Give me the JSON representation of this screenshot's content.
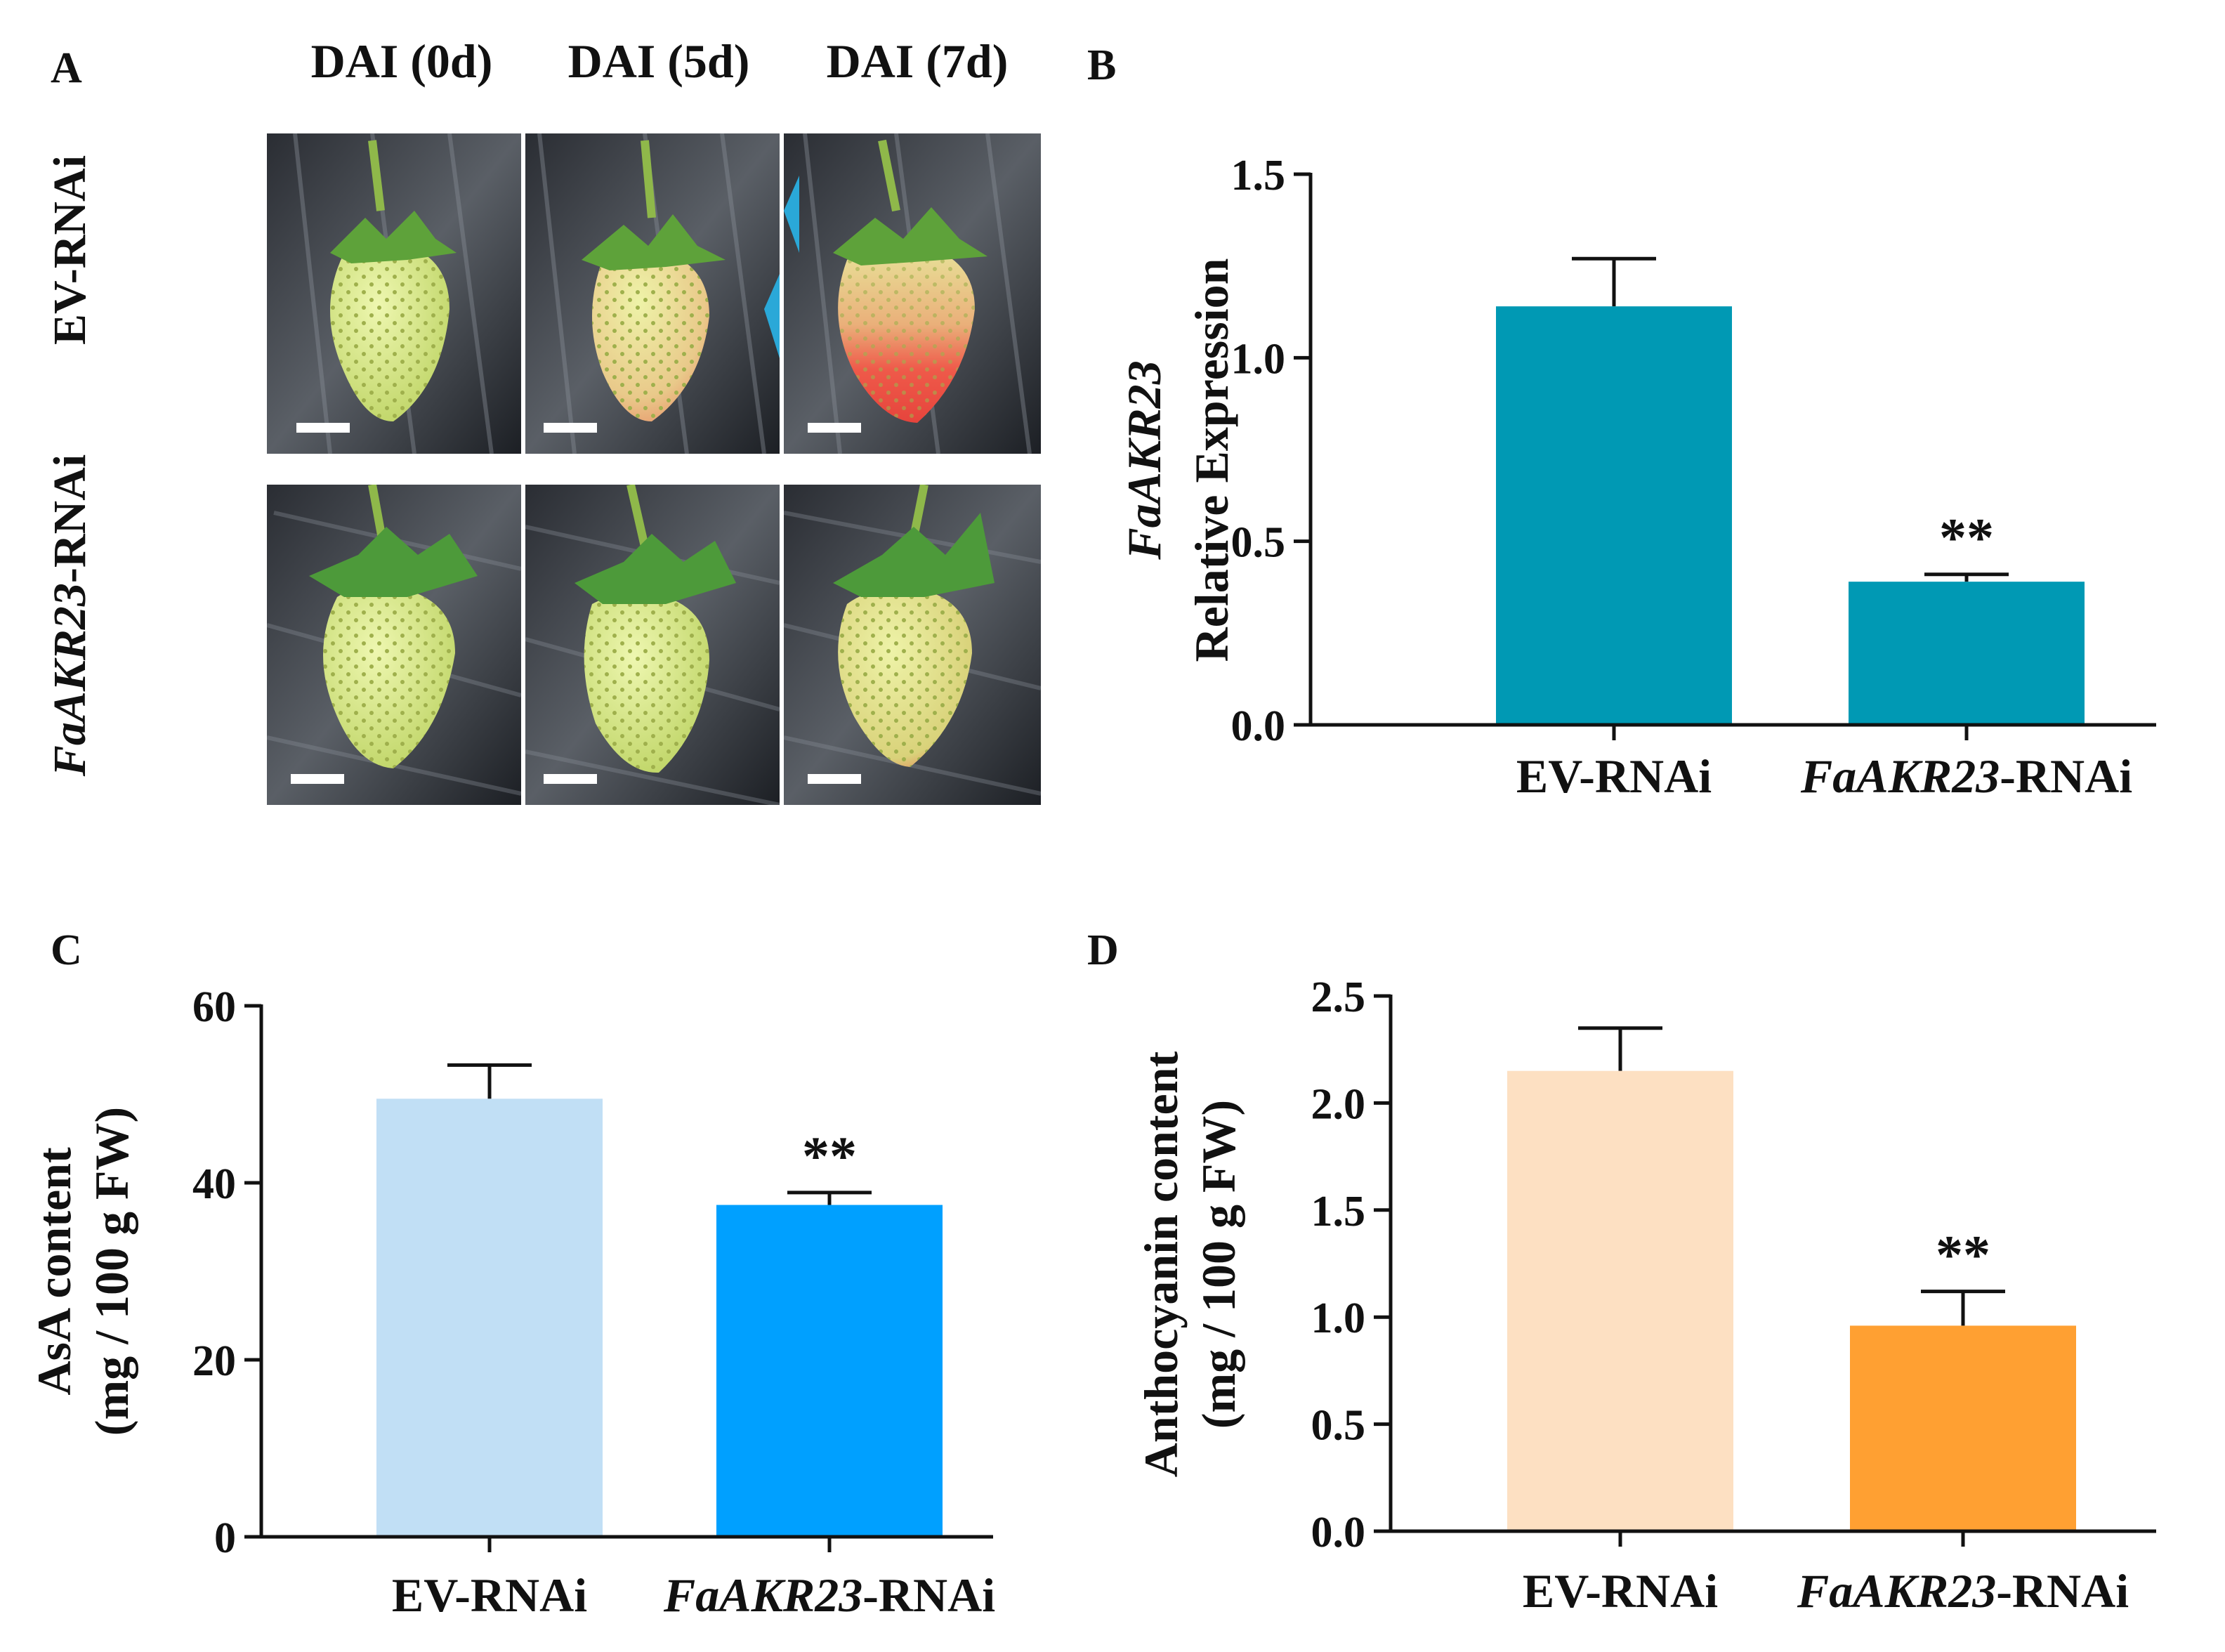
{
  "panels": {
    "A": {
      "letter": "A",
      "columns": [
        "DAI (0d)",
        "DAI (5d)",
        "DAI (7d)"
      ],
      "rows": [
        {
          "italic": "",
          "plain": "EV-RNAi"
        },
        {
          "italic": "FaAKR23",
          "plain": "-RNAi"
        }
      ]
    },
    "B": {
      "letter": "B"
    },
    "C": {
      "letter": "C"
    },
    "D": {
      "letter": "D"
    }
  },
  "colors": {
    "B_bar": "#0099b4",
    "C_bar1": "#c1dff5",
    "C_bar2": "#00a0ff",
    "D_bar1": "#fde0c2",
    "D_bar2": "#ffa032"
  },
  "chart_data": [
    {
      "panel": "B",
      "type": "bar",
      "categories": [
        {
          "italic": "",
          "plain": "EV-RNAi"
        },
        {
          "italic": "FaAKR23",
          "plain": "-RNAi"
        }
      ],
      "values": [
        1.14,
        0.39
      ],
      "errors": [
        0.13,
        0.02
      ],
      "significance": [
        "",
        "**"
      ],
      "ylabel_italic": "FaAKR23",
      "ylabel": "Relative Expression",
      "ylim": [
        0,
        1.5
      ],
      "yticks": [
        0.0,
        0.5,
        1.0,
        1.5
      ],
      "ytick_labels": [
        "0.0",
        "0.5",
        "1.0",
        "1.5"
      ]
    },
    {
      "panel": "C",
      "type": "bar",
      "categories": [
        {
          "italic": "",
          "plain": "EV-RNAi"
        },
        {
          "italic": "FaAKR23",
          "plain": "-RNAi"
        }
      ],
      "values": [
        49.5,
        37.5
      ],
      "errors": [
        3.8,
        1.4
      ],
      "significance": [
        "",
        "**"
      ],
      "ylabel": "AsA content",
      "ylabel2": "(mg / 100 g FW)",
      "ylim": [
        0,
        60
      ],
      "yticks": [
        0,
        20,
        40,
        60
      ],
      "ytick_labels": [
        "0",
        "20",
        "40",
        "60"
      ]
    },
    {
      "panel": "D",
      "type": "bar",
      "categories": [
        {
          "italic": "",
          "plain": "EV-RNAi"
        },
        {
          "italic": "FaAKR23",
          "plain": "-RNAi"
        }
      ],
      "values": [
        2.15,
        0.96
      ],
      "errors": [
        0.2,
        0.16
      ],
      "significance": [
        "",
        "**"
      ],
      "ylabel": "Anthocyanin content",
      "ylabel2": "(mg / 100 g FW)",
      "ylim": [
        0,
        2.5
      ],
      "yticks": [
        0.0,
        0.5,
        1.0,
        1.5,
        2.0,
        2.5
      ],
      "ytick_labels": [
        "0.0",
        "0.5",
        "1.0",
        "1.5",
        "2.0",
        "2.5"
      ]
    }
  ]
}
